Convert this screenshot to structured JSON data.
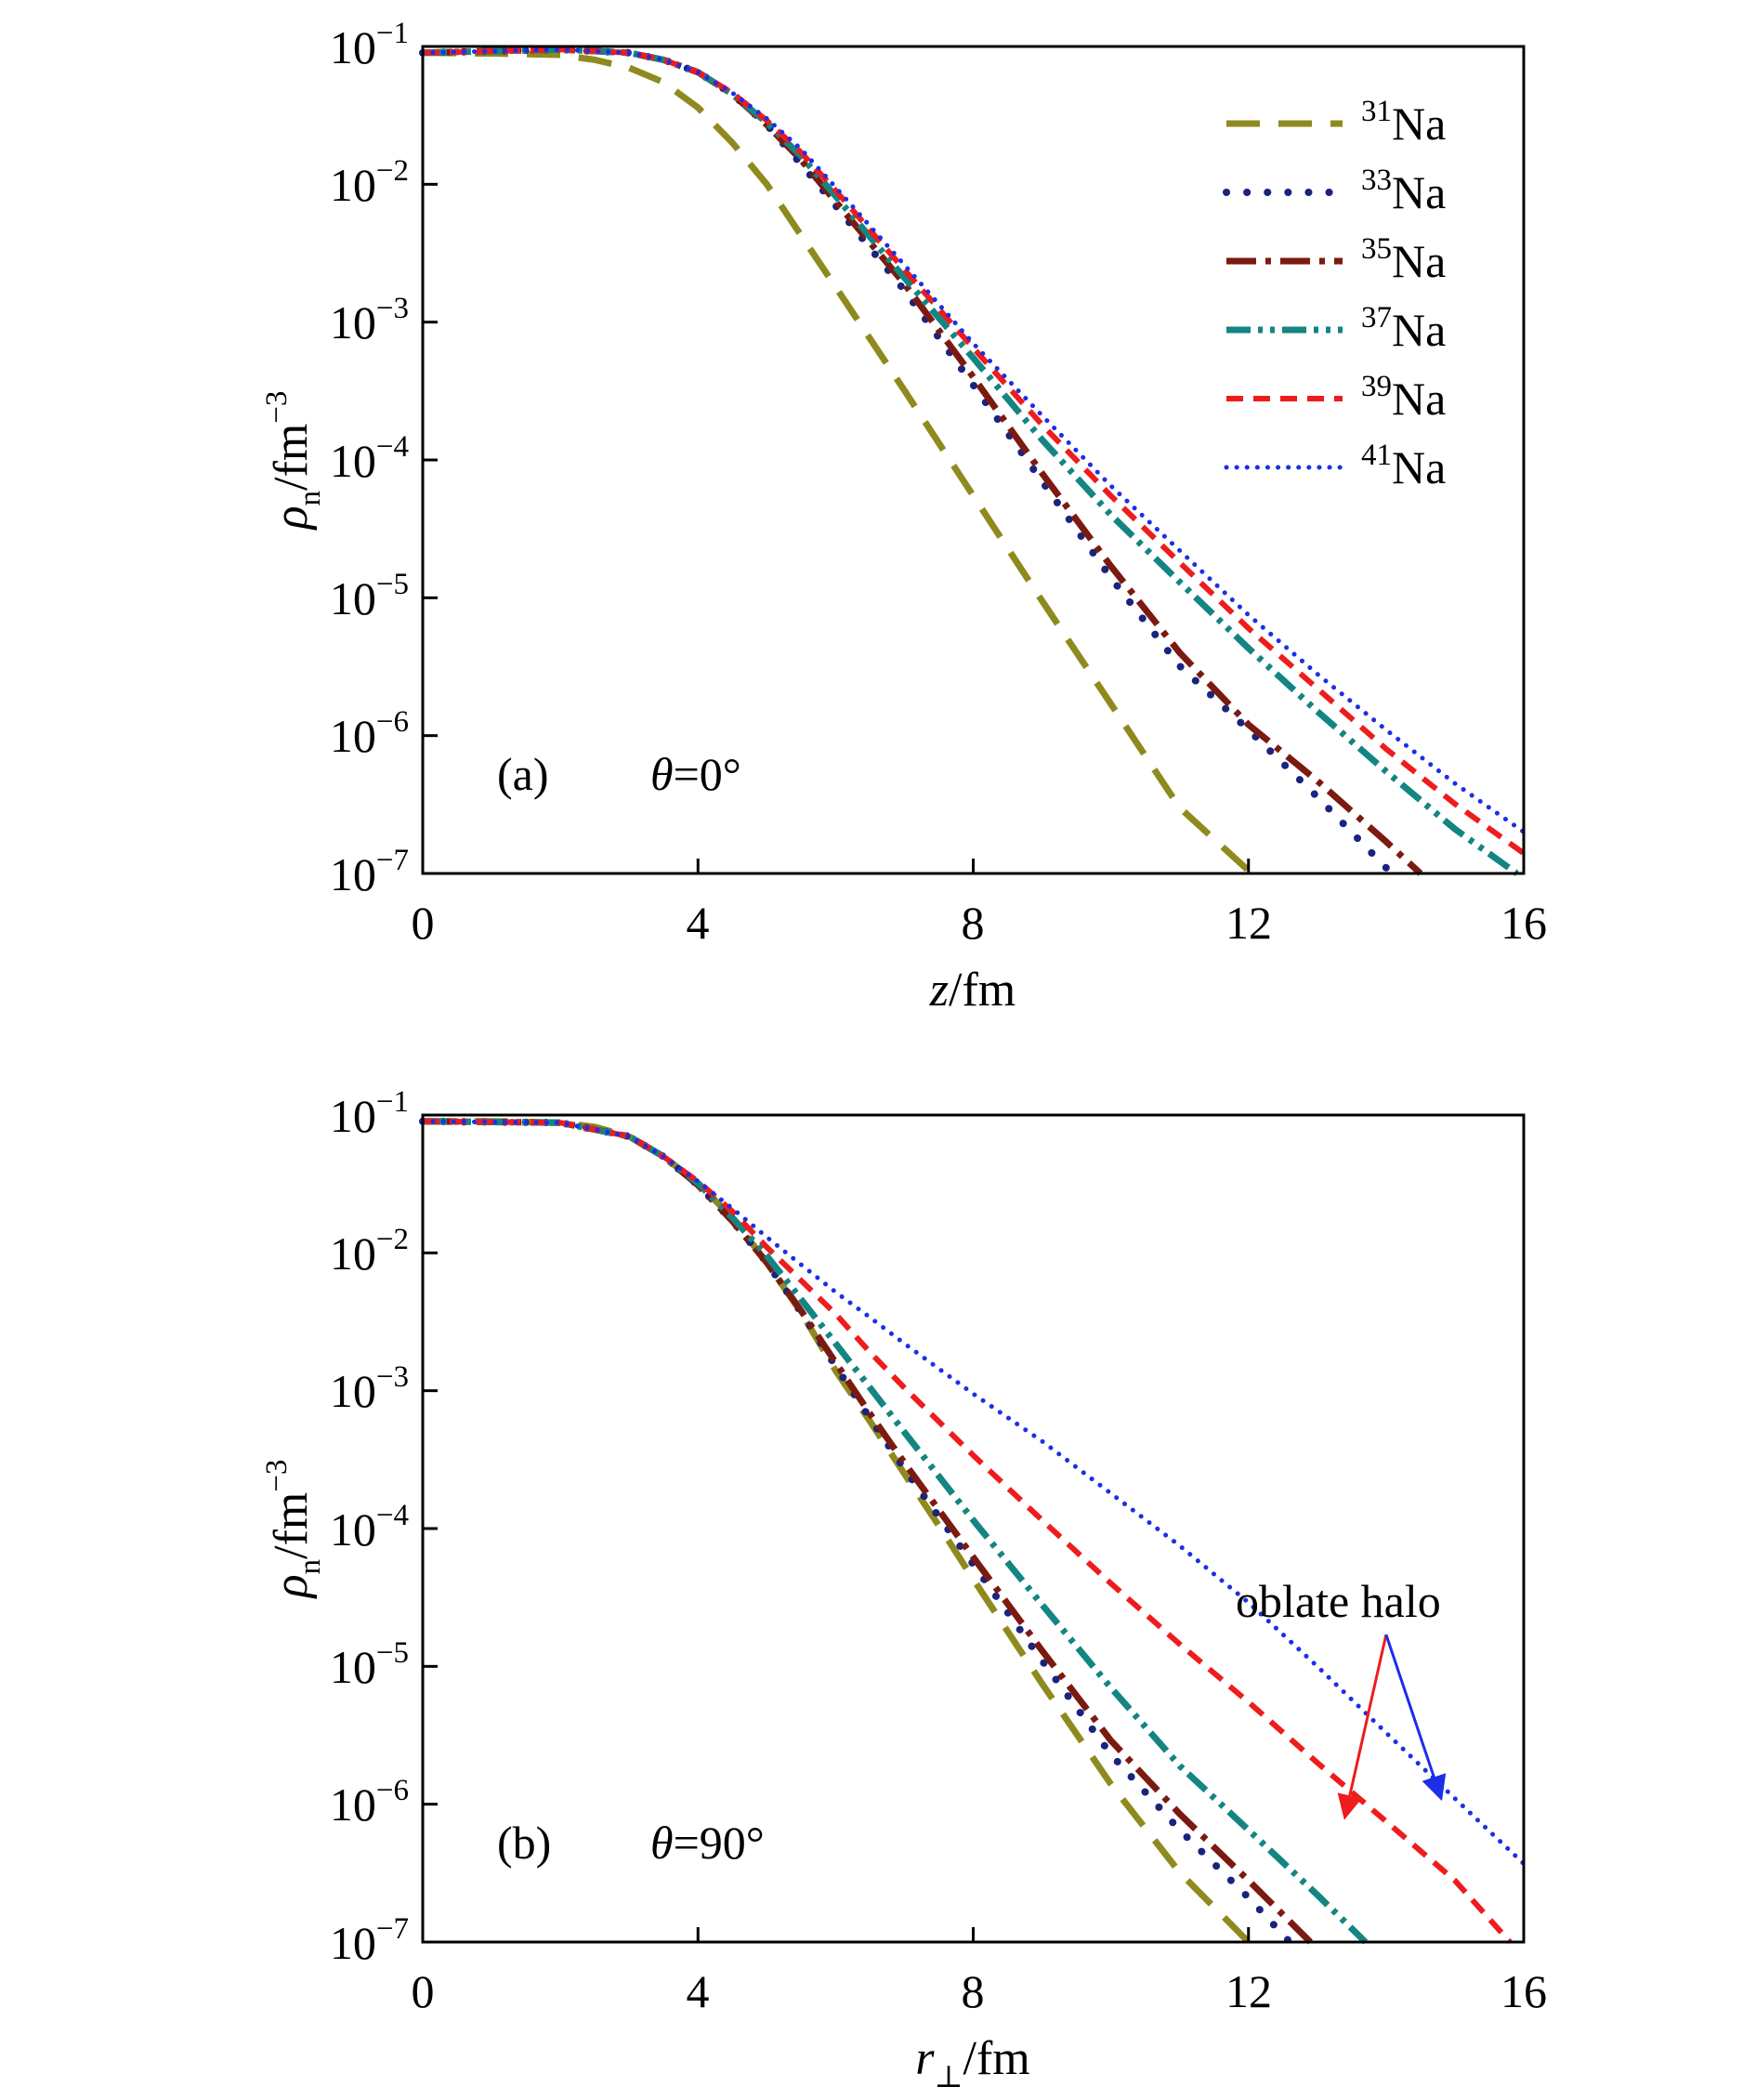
{
  "chart_data": [
    {
      "type": "line",
      "panel": "(a)",
      "annotation": "θ=0°",
      "xlabel": "z/fm",
      "ylabel": "ρn/fm−3",
      "xlim": [
        0,
        16
      ],
      "ylim": [
        1e-07,
        0.1
      ],
      "yscale": "log",
      "xticks": [
        "0",
        "4",
        "8",
        "12",
        "16"
      ],
      "yticks": [
        "10−1",
        "10−2",
        "10−3",
        "10−4",
        "10−5",
        "10−6",
        "10−7"
      ],
      "legend_position": "top-right",
      "series": [
        {
          "name": "31Na",
          "color": "#8f8a1e",
          "style": "dash",
          "x": [
            0,
            1,
            2,
            2.5,
            3,
            3.5,
            4,
            4.5,
            5,
            6,
            7,
            8,
            9,
            10,
            11,
            12,
            12.2
          ],
          "y": [
            0.09,
            0.089,
            0.087,
            0.08,
            0.07,
            0.055,
            0.036,
            0.02,
            0.01,
            0.0018,
            0.00032,
            5.5e-05,
            9.5e-06,
            1.7e-06,
            3e-07,
            1.05e-07,
            1e-07
          ]
        },
        {
          "name": "33Na",
          "color": "#1a237e",
          "style": "dot-fat",
          "x": [
            0,
            2,
            3,
            3.5,
            4,
            4.5,
            5,
            5.5,
            6,
            7,
            8,
            9,
            10,
            11,
            12,
            13,
            14
          ],
          "y": [
            0.09,
            0.095,
            0.09,
            0.08,
            0.065,
            0.045,
            0.027,
            0.014,
            0.007,
            0.0017,
            0.00035,
            7e-05,
            1.4e-05,
            3.2e-06,
            1.1e-06,
            3.6e-07,
            1.1e-07
          ]
        },
        {
          "name": "35Na",
          "color": "#7b1a10",
          "style": "dashdot",
          "x": [
            0,
            2,
            3,
            3.5,
            4,
            4.5,
            5,
            5.5,
            6,
            7,
            8,
            9,
            10,
            11,
            12,
            13,
            14,
            14.5
          ],
          "y": [
            0.09,
            0.095,
            0.09,
            0.08,
            0.065,
            0.045,
            0.027,
            0.015,
            0.0075,
            0.0019,
            0.0004,
            8e-05,
            1.7e-05,
            4e-06,
            1.2e-06,
            4.7e-07,
            1.7e-07,
            1e-07
          ]
        },
        {
          "name": "37Na",
          "color": "#138583",
          "style": "dashdotdot",
          "x": [
            0,
            2,
            3,
            3.5,
            4,
            4.5,
            5,
            5.5,
            6,
            7,
            8,
            9,
            10,
            11,
            12,
            13,
            14,
            15,
            15.9
          ],
          "y": [
            0.09,
            0.095,
            0.09,
            0.08,
            0.065,
            0.045,
            0.028,
            0.016,
            0.0082,
            0.0021,
            0.00055,
            0.00014,
            4e-05,
            1.3e-05,
            4.3e-06,
            1.5e-06,
            5.5e-07,
            2.1e-07,
            1e-07
          ]
        },
        {
          "name": "39Na",
          "color": "#ee1c1c",
          "style": "shortdash",
          "x": [
            0,
            2,
            3,
            3.5,
            4,
            4.5,
            5,
            5.5,
            6,
            7,
            8,
            9,
            10,
            11,
            12,
            13,
            14,
            15,
            16
          ],
          "y": [
            0.09,
            0.095,
            0.09,
            0.08,
            0.065,
            0.046,
            0.029,
            0.017,
            0.009,
            0.0024,
            0.00065,
            0.00018,
            5.5e-05,
            1.8e-05,
            6e-06,
            2.2e-06,
            8e-07,
            3.2e-07,
            1.4e-07
          ]
        },
        {
          "name": "41Na",
          "color": "#1c2ee8",
          "style": "dot",
          "x": [
            0,
            2,
            3,
            3.5,
            4,
            4.5,
            5,
            5.5,
            6,
            7,
            8,
            9,
            10,
            11,
            12,
            13,
            14,
            15,
            16
          ],
          "y": [
            0.09,
            0.095,
            0.09,
            0.08,
            0.065,
            0.046,
            0.03,
            0.018,
            0.0095,
            0.0026,
            0.0007,
            0.00021,
            6.5e-05,
            2.2e-05,
            7.5e-06,
            2.8e-06,
            1.1e-06,
            4.5e-07,
            2e-07
          ]
        }
      ]
    },
    {
      "type": "line",
      "panel": "(b)",
      "annotation": "θ=90°",
      "xlabel": "r⊥/fm",
      "ylabel": "ρn/fm−3",
      "xlim": [
        0,
        16
      ],
      "ylim": [
        1e-07,
        0.1
      ],
      "yscale": "log",
      "xticks": [
        "0",
        "4",
        "8",
        "12",
        "16"
      ],
      "yticks": [
        "10−1",
        "10−2",
        "10−3",
        "10−4",
        "10−5",
        "10−6",
        "10−7"
      ],
      "arrow_label": "oblate halo",
      "arrows": [
        {
          "color": "#ee1c1c",
          "from": [
            14.0,
            1.7e-05
          ],
          "to": [
            13.4,
            8e-07
          ]
        },
        {
          "color": "#1c2ee8",
          "from": [
            14.0,
            1.7e-05
          ],
          "to": [
            14.8,
            1.1e-06
          ]
        }
      ],
      "series": [
        {
          "name": "31Na",
          "color": "#8f8a1e",
          "style": "dash",
          "x": [
            0,
            1,
            2,
            2.5,
            3,
            3.5,
            4,
            4.5,
            5,
            5.5,
            6,
            6.5,
            7,
            7.5,
            8,
            9,
            10,
            11,
            12
          ],
          "y": [
            0.09,
            0.09,
            0.088,
            0.082,
            0.07,
            0.05,
            0.032,
            0.018,
            0.0085,
            0.0037,
            0.0014,
            0.0006,
            0.00025,
            0.000105,
            4.3e-05,
            7.5e-06,
            1.4e-06,
            3.2e-07,
            1e-07
          ]
        },
        {
          "name": "33Na",
          "color": "#1a237e",
          "style": "dot-fat",
          "x": [
            0,
            2,
            3,
            3.5,
            4,
            4.5,
            5,
            5.5,
            6,
            6.5,
            7,
            8,
            9,
            10,
            11,
            12,
            12.6
          ],
          "y": [
            0.09,
            0.088,
            0.07,
            0.05,
            0.031,
            0.017,
            0.0085,
            0.0037,
            0.0015,
            0.00063,
            0.00027,
            5.5e-05,
            1.1e-05,
            2.3e-06,
            6.5e-07,
            2.1e-07,
            1e-07
          ]
        },
        {
          "name": "35Na",
          "color": "#7b1a10",
          "style": "dashdot",
          "x": [
            0,
            2,
            3,
            3.5,
            4,
            4.5,
            5,
            5.5,
            6,
            6.5,
            7,
            8,
            9,
            10,
            11,
            12,
            12.9
          ],
          "y": [
            0.09,
            0.088,
            0.07,
            0.05,
            0.031,
            0.017,
            0.0085,
            0.0038,
            0.0016,
            0.00068,
            0.0003,
            6.2e-05,
            1.3e-05,
            2.9e-06,
            8.5e-07,
            2.8e-07,
            1e-07
          ]
        },
        {
          "name": "37Na",
          "color": "#138583",
          "style": "dashdotdot",
          "x": [
            0,
            2,
            3,
            3.5,
            4,
            4.5,
            5,
            5.5,
            6,
            6.5,
            7,
            8,
            9,
            10,
            11,
            12,
            13,
            13.7
          ],
          "y": [
            0.09,
            0.088,
            0.07,
            0.05,
            0.032,
            0.018,
            0.0095,
            0.0046,
            0.0022,
            0.00105,
            0.0005,
            0.000115,
            2.8e-05,
            7e-06,
            1.9e-06,
            6.5e-07,
            2.2e-07,
            1e-07
          ]
        },
        {
          "name": "39Na",
          "color": "#ee1c1c",
          "style": "shortdash",
          "x": [
            0,
            2,
            3,
            3.5,
            4,
            4.5,
            5,
            5.5,
            6,
            6.5,
            7,
            8,
            9,
            10,
            11,
            12,
            13,
            14,
            15,
            15.8
          ],
          "y": [
            0.09,
            0.088,
            0.07,
            0.05,
            0.033,
            0.02,
            0.011,
            0.0063,
            0.0036,
            0.0019,
            0.00105,
            0.00034,
            0.000115,
            4e-05,
            1.45e-05,
            5.5e-06,
            2e-06,
            7.5e-07,
            2.8e-07,
            1e-07
          ]
        },
        {
          "name": "41Na",
          "color": "#1c2ee8",
          "style": "dot",
          "x": [
            0,
            2,
            3,
            3.5,
            4,
            4.5,
            5,
            5.5,
            6,
            6.5,
            7,
            8,
            9,
            10,
            11,
            12,
            13,
            14,
            15,
            16
          ],
          "y": [
            0.09,
            0.088,
            0.07,
            0.05,
            0.033,
            0.021,
            0.013,
            0.0082,
            0.0052,
            0.0034,
            0.0022,
            0.00095,
            0.00043,
            0.00018,
            7.5e-05,
            2.9e-05,
            1e-05,
            3.3e-06,
            1.1e-06,
            3.7e-07
          ]
        }
      ]
    }
  ]
}
